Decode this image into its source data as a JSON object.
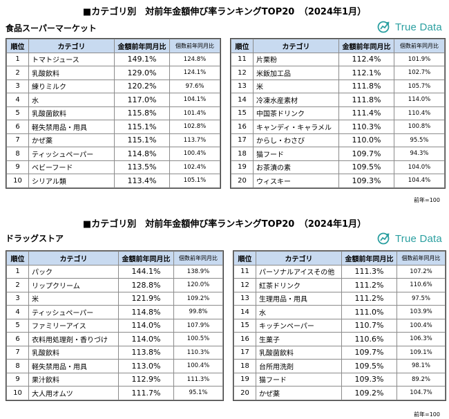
{
  "colors": {
    "header_bg": "#c8daf0",
    "logo": "#2a9fa0",
    "border": "#8a8a8a"
  },
  "logo": {
    "text": "True Data",
    "icon": "truedata-logo-icon"
  },
  "headers": {
    "rank": "順位",
    "category": "カテゴリ",
    "amount": "金額前年同月比",
    "quantity": "個数前年同月比"
  },
  "sections": [
    {
      "title": "■カテゴリ別　対前年金額伸び率ランキングTOP20　（2024年1月）",
      "subtitle": "食品スーパーマーケット",
      "note": "前年=100",
      "rows": [
        {
          "no": "1",
          "cat": "トマトジュース",
          "amt": "149.1%",
          "qty": "124.8%"
        },
        {
          "no": "2",
          "cat": "乳酸飲料",
          "amt": "129.0%",
          "qty": "124.1%"
        },
        {
          "no": "3",
          "cat": "練りミルク",
          "amt": "120.2%",
          "qty": "97.6%"
        },
        {
          "no": "4",
          "cat": "水",
          "amt": "117.0%",
          "qty": "104.1%"
        },
        {
          "no": "5",
          "cat": "乳酸菌飲料",
          "amt": "115.8%",
          "qty": "101.4%"
        },
        {
          "no": "6",
          "cat": "軽失禁用品・用具",
          "amt": "115.1%",
          "qty": "102.8%"
        },
        {
          "no": "7",
          "cat": "かぜ薬",
          "amt": "115.1%",
          "qty": "113.7%"
        },
        {
          "no": "8",
          "cat": "ティッシュペーパー",
          "amt": "114.8%",
          "qty": "100.4%"
        },
        {
          "no": "9",
          "cat": "ベビーフード",
          "amt": "113.5%",
          "qty": "102.4%"
        },
        {
          "no": "10",
          "cat": "シリアル類",
          "amt": "113.4%",
          "qty": "105.1%"
        },
        {
          "no": "11",
          "cat": "片栗粉",
          "amt": "112.4%",
          "qty": "101.9%"
        },
        {
          "no": "12",
          "cat": "米飯加工品",
          "amt": "112.1%",
          "qty": "102.7%"
        },
        {
          "no": "13",
          "cat": "米",
          "amt": "111.8%",
          "qty": "105.7%"
        },
        {
          "no": "14",
          "cat": "冷凍水産素材",
          "amt": "111.8%",
          "qty": "114.0%"
        },
        {
          "no": "15",
          "cat": "中国茶ドリンク",
          "amt": "111.4%",
          "qty": "110.4%"
        },
        {
          "no": "16",
          "cat": "キャンディ・キャラメル",
          "amt": "110.3%",
          "qty": "100.8%"
        },
        {
          "no": "17",
          "cat": "からし・わさび",
          "amt": "110.0%",
          "qty": "95.5%"
        },
        {
          "no": "18",
          "cat": "猫フード",
          "amt": "109.7%",
          "qty": "94.3%"
        },
        {
          "no": "19",
          "cat": "お茶漬の素",
          "amt": "109.5%",
          "qty": "104.0%"
        },
        {
          "no": "20",
          "cat": "ウィスキー",
          "amt": "109.3%",
          "qty": "104.4%"
        }
      ]
    },
    {
      "title": "■カテゴリ別　対前年金額伸び率ランキングTOP20　（2024年1月）",
      "subtitle": "ドラッグストア",
      "note": "前年=100",
      "rows": [
        {
          "no": "1",
          "cat": "パック",
          "amt": "144.1%",
          "qty": "138.9%"
        },
        {
          "no": "2",
          "cat": "リップクリーム",
          "amt": "128.8%",
          "qty": "120.0%"
        },
        {
          "no": "3",
          "cat": "米",
          "amt": "121.9%",
          "qty": "109.2%"
        },
        {
          "no": "4",
          "cat": "ティッシュペーパー",
          "amt": "114.8%",
          "qty": "99.8%"
        },
        {
          "no": "5",
          "cat": "ファミリーアイス",
          "amt": "114.0%",
          "qty": "107.9%"
        },
        {
          "no": "6",
          "cat": "衣料用処理剤・香りづけ",
          "amt": "114.0%",
          "qty": "100.5%"
        },
        {
          "no": "7",
          "cat": "乳酸飲料",
          "amt": "113.8%",
          "qty": "110.3%"
        },
        {
          "no": "8",
          "cat": "軽失禁用品・用具",
          "amt": "113.0%",
          "qty": "100.4%"
        },
        {
          "no": "9",
          "cat": "果汁飲料",
          "amt": "112.9%",
          "qty": "111.3%"
        },
        {
          "no": "10",
          "cat": "大人用オムツ",
          "amt": "111.7%",
          "qty": "95.1%"
        },
        {
          "no": "11",
          "cat": "パーソナルアイスその他",
          "amt": "111.3%",
          "qty": "107.2%"
        },
        {
          "no": "12",
          "cat": "紅茶ドリンク",
          "amt": "111.2%",
          "qty": "110.6%"
        },
        {
          "no": "13",
          "cat": "生理用品・用具",
          "amt": "111.2%",
          "qty": "97.5%"
        },
        {
          "no": "14",
          "cat": "水",
          "amt": "111.0%",
          "qty": "103.9%"
        },
        {
          "no": "15",
          "cat": "キッチンペーパー",
          "amt": "110.7%",
          "qty": "100.4%"
        },
        {
          "no": "16",
          "cat": "生菓子",
          "amt": "110.6%",
          "qty": "106.3%"
        },
        {
          "no": "17",
          "cat": "乳酸菌飲料",
          "amt": "109.7%",
          "qty": "109.1%"
        },
        {
          "no": "18",
          "cat": "台所用洗剤",
          "amt": "109.5%",
          "qty": "98.1%"
        },
        {
          "no": "19",
          "cat": "猫フード",
          "amt": "109.3%",
          "qty": "89.2%"
        },
        {
          "no": "20",
          "cat": "かぜ薬",
          "amt": "109.2%",
          "qty": "104.7%"
        }
      ]
    }
  ]
}
